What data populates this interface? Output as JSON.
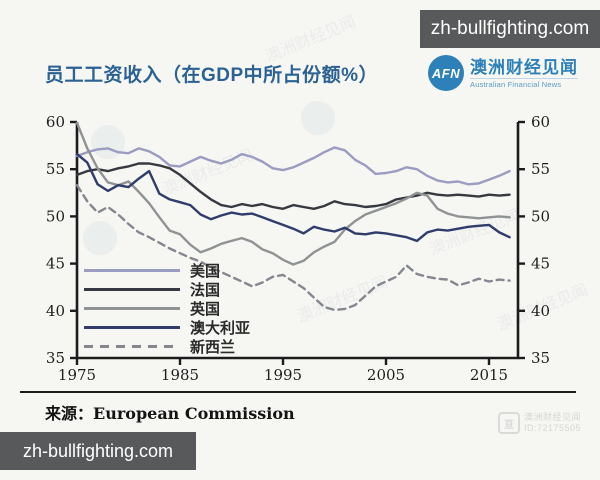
{
  "watermarks": {
    "site": "zh-bullfighting.com",
    "faint_text": "澳洲财经见闻"
  },
  "header": {
    "title": "员工工资收入（在GDP中所占份额%）"
  },
  "logo": {
    "abbr": "AFN",
    "name_cn": "澳洲财经见闻",
    "name_en": "Australian Financial News"
  },
  "source": {
    "label": "来源：",
    "value": "European Commission"
  },
  "id_watermark": {
    "icon": "afn-square-mark",
    "name": "澳洲财经见闻",
    "id": "ID:72175505"
  },
  "chart_data": {
    "type": "line",
    "title": "员工工资收入（在GDP中所占份额%）",
    "xlabel": "",
    "ylabel": "",
    "ylim": [
      35,
      60
    ],
    "y_ticks": [
      60,
      55,
      50,
      45,
      40,
      35
    ],
    "x_ticks": [
      1975,
      1985,
      1995,
      2005,
      2015
    ],
    "grid": false,
    "dual_y_axis": true,
    "legend_position": "inside-lower-left",
    "axis_color": "#1c1c1c",
    "x": [
      1975,
      1976,
      1977,
      1978,
      1979,
      1980,
      1981,
      1982,
      1983,
      1984,
      1985,
      1986,
      1987,
      1988,
      1989,
      1990,
      1991,
      1992,
      1993,
      1994,
      1995,
      1996,
      1997,
      1998,
      1999,
      2000,
      2001,
      2002,
      2003,
      2004,
      2005,
      2006,
      2007,
      2008,
      2009,
      2010,
      2011,
      2012,
      2013,
      2014,
      2015,
      2016,
      2017
    ],
    "series": [
      {
        "key": "usa",
        "name": "美国",
        "color": "#9a9cc0",
        "dash": null,
        "values": [
          56.4,
          56.8,
          57.1,
          57.2,
          56.8,
          56.7,
          57.2,
          56.9,
          56.3,
          55.4,
          55.3,
          55.8,
          56.3,
          55.9,
          55.6,
          56.0,
          56.6,
          56.3,
          55.8,
          55.1,
          54.9,
          55.2,
          55.7,
          56.2,
          56.8,
          57.3,
          57.0,
          56.0,
          55.4,
          54.5,
          54.6,
          54.8,
          55.2,
          55.0,
          54.3,
          53.8,
          53.6,
          53.7,
          53.4,
          53.5,
          53.9,
          54.3,
          54.8
        ]
      },
      {
        "key": "france",
        "name": "法国",
        "color": "#36393f",
        "dash": null,
        "values": [
          54.4,
          54.8,
          55.0,
          54.8,
          55.1,
          55.3,
          55.6,
          55.6,
          55.4,
          55.1,
          54.4,
          53.5,
          52.6,
          51.8,
          51.2,
          51.0,
          51.3,
          51.1,
          51.3,
          51.0,
          50.8,
          51.2,
          51.0,
          50.8,
          51.1,
          51.6,
          51.3,
          51.2,
          51.0,
          51.1,
          51.3,
          51.8,
          52.0,
          52.2,
          52.5,
          52.3,
          52.2,
          52.3,
          52.2,
          52.1,
          52.3,
          52.2,
          52.3
        ]
      },
      {
        "key": "uk",
        "name": "英国",
        "color": "#8f9394",
        "dash": null,
        "values": [
          59.9,
          57.2,
          55.1,
          53.6,
          53.3,
          53.7,
          52.6,
          51.4,
          49.9,
          48.5,
          48.1,
          47.0,
          46.2,
          46.6,
          47.1,
          47.4,
          47.7,
          47.3,
          46.5,
          46.1,
          45.4,
          44.9,
          45.3,
          46.2,
          46.8,
          47.3,
          48.6,
          49.5,
          50.2,
          50.6,
          51.0,
          51.4,
          51.9,
          52.5,
          52.2,
          50.8,
          50.3,
          50.0,
          49.9,
          49.8,
          49.9,
          50.0,
          49.9
        ]
      },
      {
        "key": "australia",
        "name": "澳大利亚",
        "color": "#2f3c6c",
        "dash": null,
        "values": [
          56.6,
          55.7,
          53.4,
          52.7,
          53.3,
          53.1,
          54.0,
          54.8,
          52.4,
          51.8,
          51.5,
          51.2,
          50.2,
          49.7,
          50.1,
          50.4,
          50.2,
          50.3,
          49.9,
          49.5,
          49.1,
          48.7,
          48.2,
          48.9,
          48.6,
          48.4,
          48.8,
          48.2,
          48.1,
          48.3,
          48.2,
          48.0,
          47.8,
          47.4,
          48.3,
          48.6,
          48.5,
          48.7,
          48.9,
          49.0,
          49.1,
          48.3,
          47.8
        ]
      },
      {
        "key": "new-zealand",
        "name": "新西兰",
        "color": "#85878f",
        "dash": "7 5",
        "values": [
          53.3,
          51.6,
          50.4,
          51.0,
          50.2,
          49.2,
          48.3,
          47.8,
          47.2,
          46.6,
          46.1,
          45.6,
          45.2,
          44.6,
          44.1,
          43.6,
          43.1,
          42.6,
          43.0,
          43.6,
          43.8,
          43.1,
          42.4,
          41.4,
          40.4,
          40.1,
          40.2,
          40.6,
          41.6,
          42.6,
          43.1,
          43.6,
          44.8,
          43.9,
          43.6,
          43.4,
          43.3,
          42.7,
          43.0,
          43.4,
          43.1,
          43.3,
          43.2
        ]
      }
    ]
  }
}
